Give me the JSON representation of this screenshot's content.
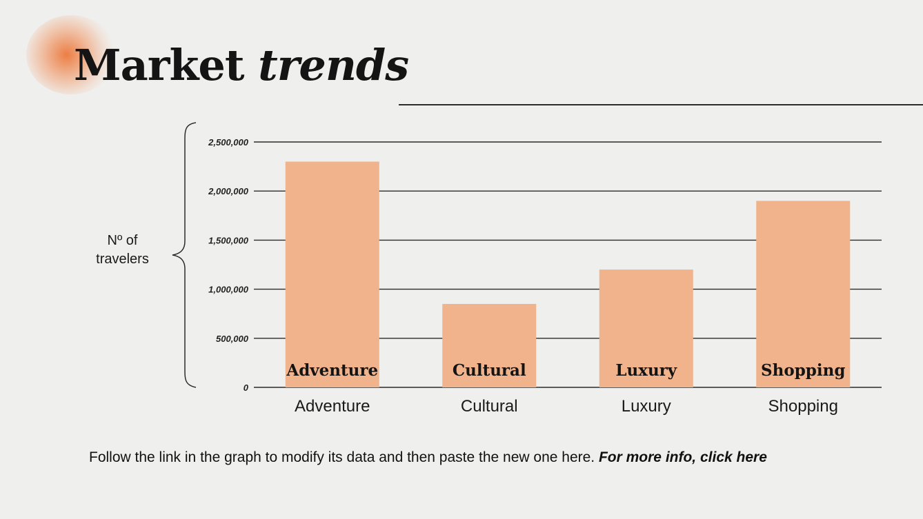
{
  "slide": {
    "title_plain": "Market",
    "title_italic": "trends",
    "footer_text": "Follow the link in the graph to modify its data and then paste the new one here. ",
    "footer_link": "For more info, click here"
  },
  "y_axis_label": [
    "Nº of",
    "travelers"
  ],
  "colors": {
    "bar": "#f0b38b",
    "grid": "#2a2a2a",
    "text": "#141414",
    "accent_glow": "#ec783c"
  },
  "chart_data": {
    "type": "bar",
    "categories": [
      "Adventure",
      "Cultural",
      "Luxury",
      "Shopping"
    ],
    "values": [
      2300000,
      850000,
      1200000,
      1900000
    ],
    "ylim": [
      0,
      2500000
    ],
    "yticks": [
      0,
      500000,
      1000000,
      1500000,
      2000000,
      2500000
    ],
    "ytick_labels": [
      "0",
      "500,000",
      "1,000,000",
      "1,500,000",
      "2,000,000",
      "2,500,000"
    ],
    "bar_labels": [
      "Adventure",
      "Cultural",
      "Luxury",
      "Shopping"
    ],
    "grid": true,
    "legend": "none"
  }
}
